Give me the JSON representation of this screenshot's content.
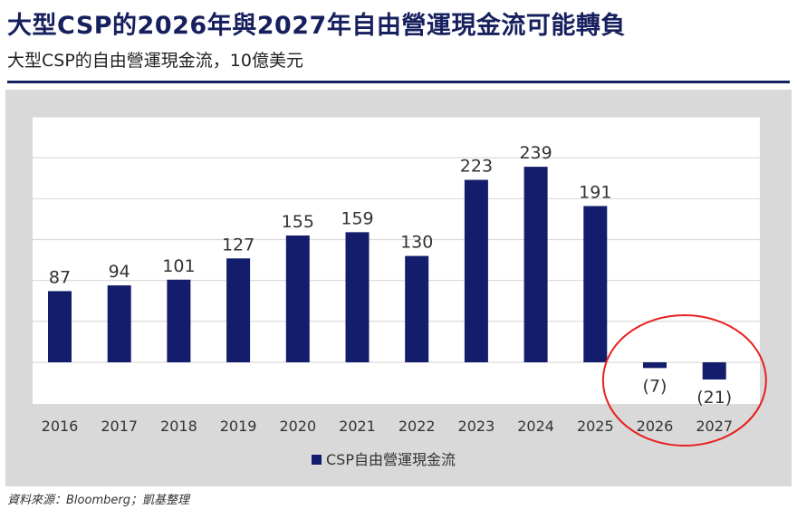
{
  "header": {
    "title": "大型CSP的2026年與2027年自由營運現金流可能轉負",
    "subtitle": "大型CSP的自由營運現金流，10億美元"
  },
  "footer": {
    "source": "資料來源：Bloomberg；凱基整理"
  },
  "colors": {
    "bar": "#141d6b",
    "title": "#17205e",
    "panel": "#d9d9d9",
    "plot": "#ffffff",
    "highlight_circle": "#e8201f"
  },
  "chart_data": {
    "type": "bar",
    "title": "",
    "xlabel": "",
    "ylabel": "",
    "categories": [
      "2016",
      "2017",
      "2018",
      "2019",
      "2020",
      "2021",
      "2022",
      "2023",
      "2024",
      "2025",
      "2026",
      "2027"
    ],
    "series": [
      {
        "name": "CSP自由營運現金流",
        "values": [
          87,
          94,
          101,
          127,
          155,
          159,
          130,
          223,
          239,
          191,
          -7,
          -21
        ],
        "labels": [
          "87",
          "94",
          "101",
          "127",
          "155",
          "159",
          "130",
          "223",
          "239",
          "191",
          "(7)",
          "(21)"
        ]
      }
    ],
    "ylim": [
      -50,
      300
    ],
    "grid": true,
    "legend": "bottom-center",
    "highlight": {
      "shape": "circle",
      "categories": [
        "2026",
        "2027"
      ]
    }
  }
}
